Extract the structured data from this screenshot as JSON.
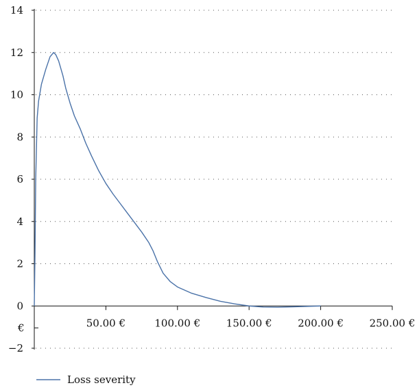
{
  "chart_data": {
    "type": "line",
    "title": "",
    "xlabel": "",
    "ylabel": "",
    "xlim": [
      0,
      250
    ],
    "ylim": [
      -2,
      14
    ],
    "grid": true,
    "legend_position": "bottom-left",
    "x_ticks": [
      {
        "value": 50,
        "label": "50.00 €"
      },
      {
        "value": 100,
        "label": "100.00 €"
      },
      {
        "value": 150,
        "label": "150.00 €"
      },
      {
        "value": 200,
        "label": "200.00 €"
      },
      {
        "value": 250,
        "label": "250.00 €"
      }
    ],
    "x_origin_label": "€",
    "y_ticks": [
      {
        "value": -2,
        "label": "−2"
      },
      {
        "value": 0,
        "label": "0"
      },
      {
        "value": 2,
        "label": "2"
      },
      {
        "value": 4,
        "label": "4"
      },
      {
        "value": 6,
        "label": "6"
      },
      {
        "value": 8,
        "label": "8"
      },
      {
        "value": 10,
        "label": "10"
      },
      {
        "value": 12,
        "label": "12"
      },
      {
        "value": 14,
        "label": "14"
      }
    ],
    "series": [
      {
        "name": "Loss severity",
        "color": "#4a72a8",
        "points": [
          [
            0,
            0
          ],
          [
            0.5,
            2.5
          ],
          [
            1,
            6
          ],
          [
            2,
            8.9
          ],
          [
            3,
            9.7
          ],
          [
            5,
            10.5
          ],
          [
            8,
            11.2
          ],
          [
            11,
            11.8
          ],
          [
            13.5,
            12.0
          ],
          [
            15,
            11.9
          ],
          [
            17,
            11.6
          ],
          [
            20,
            10.9
          ],
          [
            22,
            10.3
          ],
          [
            25,
            9.6
          ],
          [
            28,
            9.0
          ],
          [
            32,
            8.4
          ],
          [
            36,
            7.7
          ],
          [
            40,
            7.1
          ],
          [
            45,
            6.4
          ],
          [
            50,
            5.8
          ],
          [
            55,
            5.3
          ],
          [
            60,
            4.85
          ],
          [
            65,
            4.4
          ],
          [
            70,
            3.95
          ],
          [
            75,
            3.5
          ],
          [
            80,
            3.0
          ],
          [
            83,
            2.6
          ],
          [
            86,
            2.1
          ],
          [
            90,
            1.55
          ],
          [
            95,
            1.15
          ],
          [
            100,
            0.9
          ],
          [
            110,
            0.6
          ],
          [
            120,
            0.4
          ],
          [
            130,
            0.22
          ],
          [
            140,
            0.1
          ],
          [
            150,
            0.0
          ],
          [
            160,
            -0.05
          ],
          [
            170,
            -0.06
          ],
          [
            180,
            -0.04
          ],
          [
            190,
            -0.02
          ],
          [
            200,
            0.0
          ]
        ]
      }
    ]
  }
}
